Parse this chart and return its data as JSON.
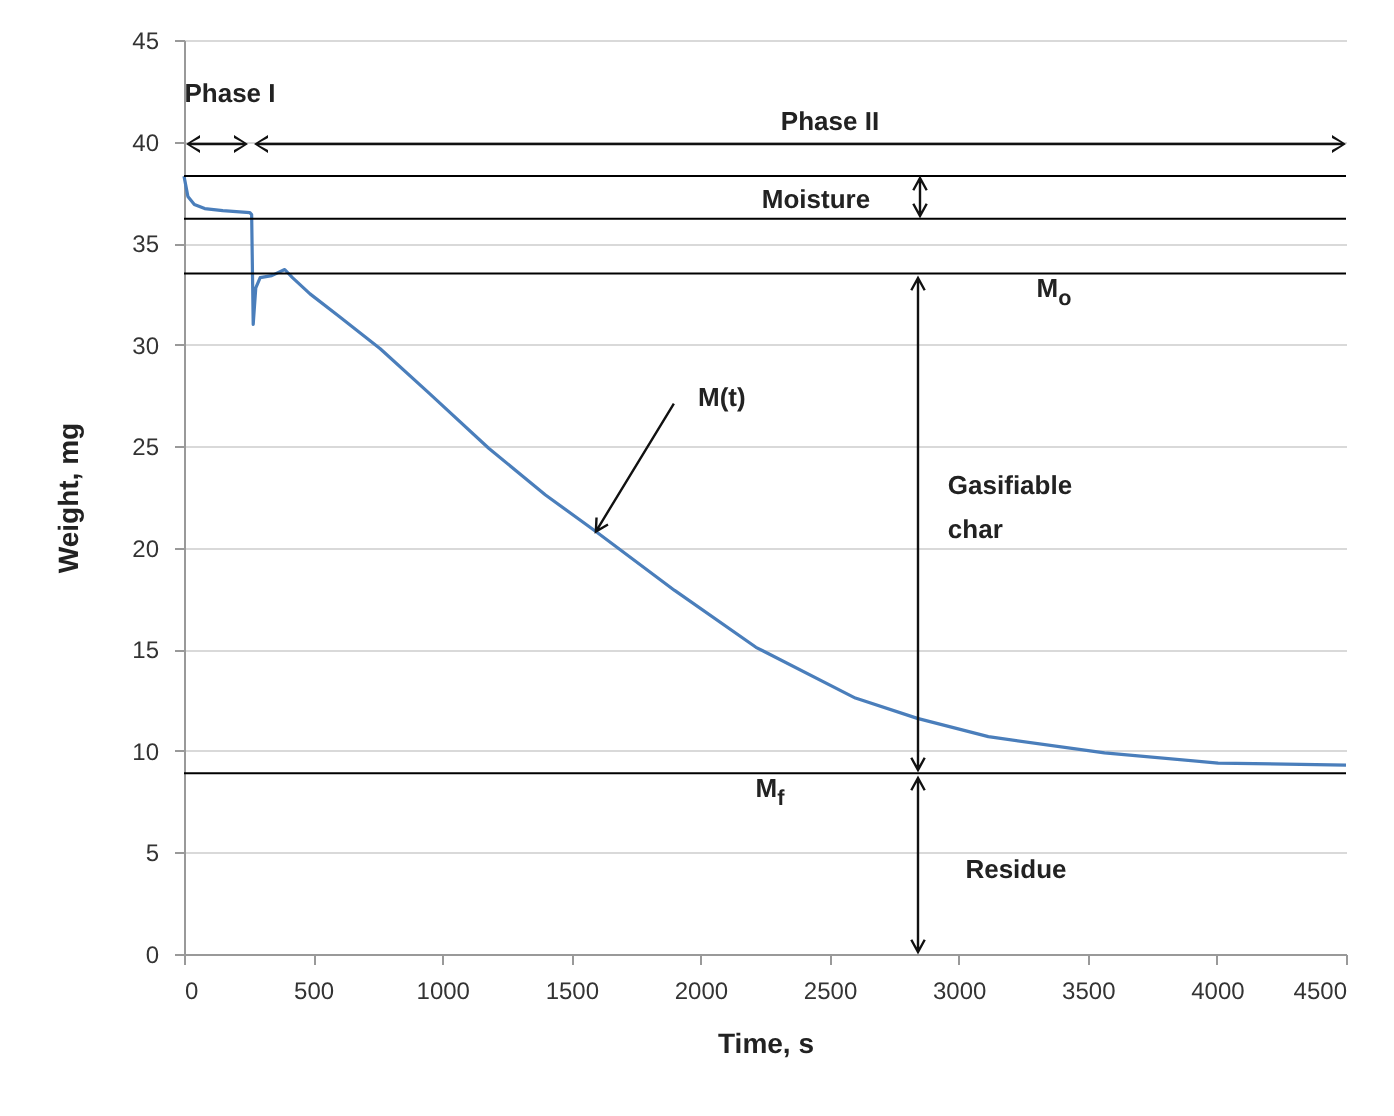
{
  "chart_data": {
    "type": "line",
    "xlabel": "Time, s",
    "ylabel": "Weight, mg",
    "x": [
      0,
      15,
      40,
      80,
      150,
      255,
      262,
      268,
      278,
      295,
      340,
      390,
      420,
      488,
      600,
      760,
      950,
      1180,
      1400,
      1595,
      1900,
      2215,
      2600,
      2840,
      3115,
      3565,
      4005,
      4500
    ],
    "series": [
      {
        "color": "#4a7ebb",
        "values": [
          38.3,
          37.3,
          36.9,
          36.7,
          36.6,
          36.5,
          36.4,
          31.0,
          32.8,
          33.3,
          33.4,
          33.7,
          33.3,
          32.5,
          31.4,
          29.8,
          27.6,
          24.9,
          22.6,
          20.8,
          17.9,
          15.1,
          12.6,
          11.6,
          10.7,
          9.9,
          9.4,
          9.3
        ]
      }
    ],
    "xlim": [
      0,
      4500
    ],
    "xticks": [
      0,
      500,
      1000,
      1500,
      2000,
      2500,
      3000,
      3500,
      4000,
      4500
    ],
    "ylim": [
      0,
      45
    ],
    "yticks": [
      0,
      5,
      10,
      15,
      20,
      25,
      30,
      35,
      40,
      45
    ],
    "grid": "y",
    "legend": false,
    "marker": "none",
    "line_style": "solid",
    "ref_lines": [
      {
        "axis": "y",
        "value": 38.3,
        "color": "#000000"
      },
      {
        "axis": "y",
        "value": 36.2,
        "color": "#000000"
      },
      {
        "axis": "y",
        "value": 33.5,
        "color": "#000000",
        "label": "M$_{o}$"
      },
      {
        "axis": "y",
        "value": 8.9,
        "color": "#000000",
        "label": "M$_{f}$"
      }
    ],
    "annotations": [
      "Phase I",
      "Phase II",
      "Moisture",
      {
        "text": "M(t)",
        "x": 1595,
        "y": 20.8
      },
      "Gasifiable\nchar",
      "Residue"
    ]
  }
}
